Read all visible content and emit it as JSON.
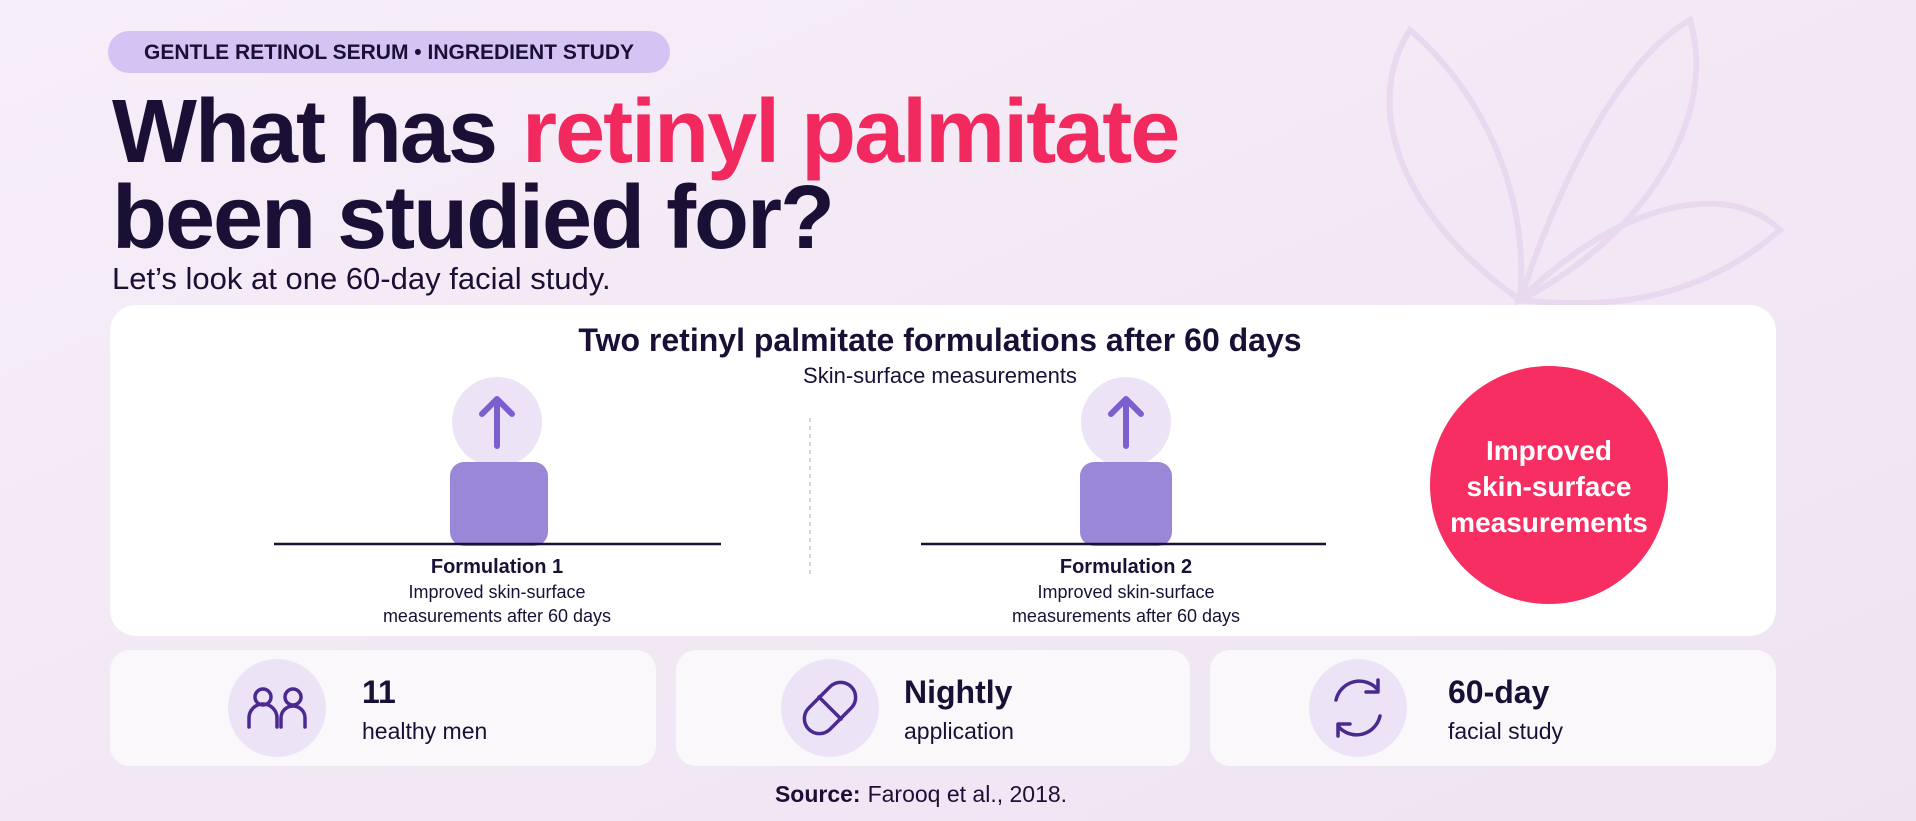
{
  "tag": "GENTLE RETINOL SERUM • INGREDIENT STUDY",
  "header": {
    "title_lead": "What has",
    "title_highlight": "retinyl palmitate",
    "title_tail": "been studied for?",
    "subtitle": "Let’s look at one 60-day facial study."
  },
  "study_card": {
    "title": "Two retinyl palmitate formulations after 60 days",
    "subtitle": "Skin-surface measurements",
    "formulations": [
      {
        "label": "Formulation 1",
        "description_lines": [
          "Improved skin-surface",
          "measurements after 60 days"
        ]
      },
      {
        "label": "Formulation 2",
        "description_lines": [
          "Improved skin-surface",
          "measurements after 60 days"
        ]
      }
    ],
    "result_badge": [
      "Improved",
      "skin-surface",
      "measurements"
    ]
  },
  "stats": [
    {
      "value": 11,
      "label": "healthy men"
    },
    {
      "value": "Nightly",
      "label": "application"
    },
    {
      "value": "60-day",
      "label": "facial study"
    }
  ],
  "source": {
    "label": "Source:",
    "text": "Farooq et al., 2018."
  }
}
